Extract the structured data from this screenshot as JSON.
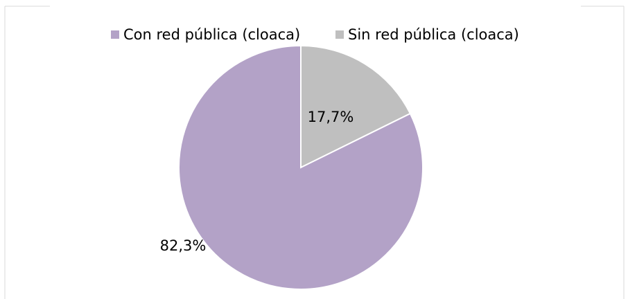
{
  "chart_data": {
    "type": "pie",
    "title": "",
    "legend_position": "top",
    "categories": [
      "Con red pública (cloaca)",
      "Sin red pública (cloaca)"
    ],
    "values": [
      82.3,
      17.7
    ],
    "data_labels": [
      "82,3%",
      "17,7%"
    ],
    "colors": [
      "#b3a2c7",
      "#bfbfbf"
    ]
  }
}
